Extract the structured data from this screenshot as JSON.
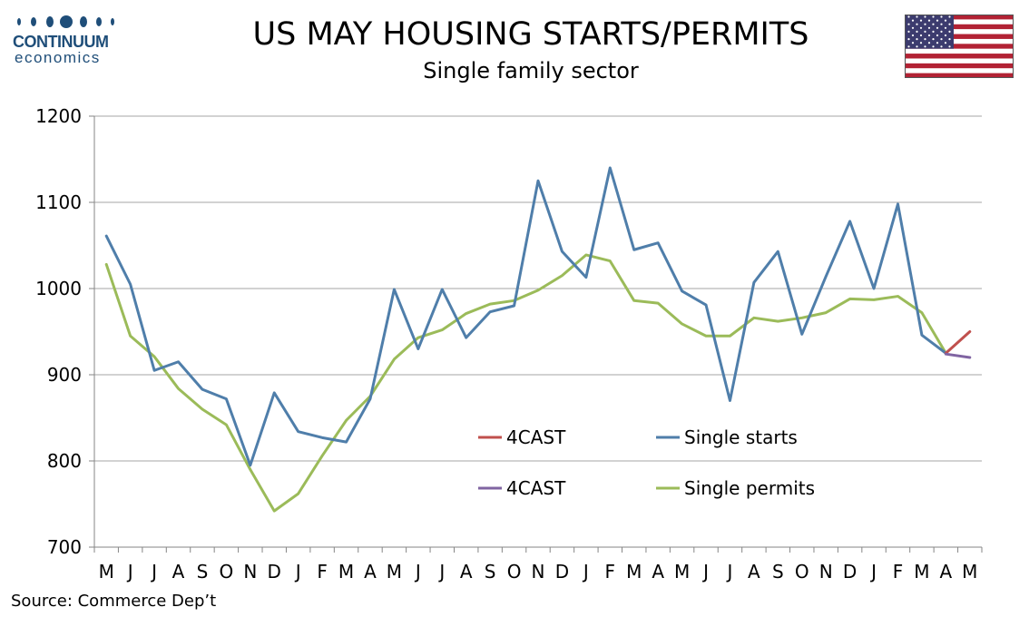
{
  "header": {
    "brand_name": "CONTINUUM",
    "brand_sub": "economics",
    "title": "US MAY HOUSING STARTS/PERMITS",
    "subtitle": "Single family sector",
    "source": "Source: Commerce Dep’t"
  },
  "icons": {
    "logo": "continuum-dots-logo",
    "flag": "us-flag-icon"
  },
  "colors": {
    "starts": "#4f7eaa",
    "permits": "#9bbb59",
    "forecast_starts": "#c0504d",
    "forecast_permits": "#8064a2",
    "brand": "#1f4e79"
  },
  "chart_data": {
    "type": "line",
    "categories": [
      "M",
      "J",
      "J",
      "A",
      "S",
      "O",
      "N",
      "D",
      "J",
      "F",
      "M",
      "A",
      "M",
      "J",
      "J",
      "A",
      "S",
      "O",
      "N",
      "D",
      "J",
      "F",
      "M",
      "A",
      "M",
      "J",
      "J",
      "A",
      "S",
      "O",
      "N",
      "D",
      "J",
      "F",
      "M",
      "A",
      "M"
    ],
    "ylim": [
      700,
      1200
    ],
    "yticks": [
      700,
      800,
      900,
      1000,
      1100,
      1200
    ],
    "grid": true,
    "legend_position": "center-right",
    "series": [
      {
        "name": "Single starts",
        "values": [
          1061,
          1005,
          905,
          915,
          883,
          872,
          795,
          879,
          834,
          827,
          822,
          872,
          999,
          930,
          999,
          943,
          973,
          980,
          1125,
          1043,
          1013,
          1140,
          1045,
          1053,
          997,
          981,
          870,
          1007,
          1043,
          947,
          1014,
          1078,
          1000,
          1098,
          946,
          925,
          null
        ]
      },
      {
        "name": "Single permits",
        "values": [
          1028,
          945,
          921,
          884,
          860,
          842,
          790,
          742,
          762,
          806,
          847,
          875,
          918,
          943,
          952,
          971,
          982,
          986,
          998,
          1015,
          1039,
          1032,
          986,
          983,
          959,
          945,
          945,
          966,
          962,
          966,
          972,
          988,
          987,
          991,
          972,
          925,
          null
        ]
      },
      {
        "name": "4CAST",
        "values": [
          null,
          null,
          null,
          null,
          null,
          null,
          null,
          null,
          null,
          null,
          null,
          null,
          null,
          null,
          null,
          null,
          null,
          null,
          null,
          null,
          null,
          null,
          null,
          null,
          null,
          null,
          null,
          null,
          null,
          null,
          null,
          null,
          null,
          null,
          null,
          925,
          950
        ]
      },
      {
        "name": "4CAST",
        "values": [
          null,
          null,
          null,
          null,
          null,
          null,
          null,
          null,
          null,
          null,
          null,
          null,
          null,
          null,
          null,
          null,
          null,
          null,
          null,
          null,
          null,
          null,
          null,
          null,
          null,
          null,
          null,
          null,
          null,
          null,
          null,
          null,
          null,
          null,
          null,
          924,
          920
        ]
      }
    ],
    "legend": [
      {
        "label": "4CAST",
        "series": "forecast_starts"
      },
      {
        "label": "Single starts",
        "series": "starts"
      },
      {
        "label": "4CAST",
        "series": "forecast_permits"
      },
      {
        "label": "Single permits",
        "series": "permits"
      }
    ]
  }
}
